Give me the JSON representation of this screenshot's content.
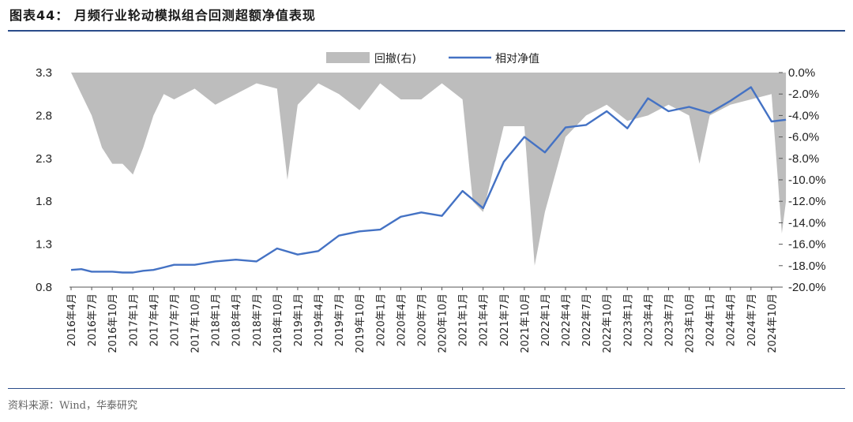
{
  "header": {
    "title": "图表44：  月频行业轮动模拟组合回测超额净值表现"
  },
  "footer": {
    "source": "资料来源：Wind，华泰研究"
  },
  "chart_data": {
    "type": "area+line",
    "title": "",
    "legend": [
      "回撤(右)",
      "相对净值"
    ],
    "legend_position": "top",
    "colors": {
      "drawdown": "#bdbdbd",
      "nav": "#4472c4"
    },
    "left_axis": {
      "min": 0.8,
      "max": 3.3,
      "ticks": [
        "0.8",
        "1.3",
        "1.8",
        "2.3",
        "2.8",
        "3.3"
      ]
    },
    "right_axis": {
      "min": -20,
      "max": 0,
      "unit": "%",
      "ticks": [
        "0.0%",
        "-2.0%",
        "-4.0%",
        "-6.0%",
        "-8.0%",
        "-10.0%",
        "-12.0%",
        "-14.0%",
        "-16.0%",
        "-18.0%",
        "-20.0%"
      ]
    },
    "x_ticks": [
      "2016年4月",
      "2016年7月",
      "2016年10月",
      "2017年1月",
      "2017年4月",
      "2017年7月",
      "2017年10月",
      "2018年1月",
      "2018年4月",
      "2018年7月",
      "2018年10月",
      "2019年1月",
      "2019年4月",
      "2019年7月",
      "2019年10月",
      "2020年1月",
      "2020年4月",
      "2020年7月",
      "2020年10月",
      "2021年1月",
      "2021年4月",
      "2021年7月",
      "2021年10月",
      "2022年1月",
      "2022年4月",
      "2022年7月",
      "2022年10月",
      "2023年1月",
      "2023年4月",
      "2023年7月",
      "2023年10月",
      "2024年1月",
      "2024年4月",
      "2024年7月",
      "2024年10月"
    ],
    "series": [
      {
        "name": "相对净值",
        "axis": "left",
        "x": [
          0,
          0.5,
          1,
          1.5,
          2,
          2.5,
          3,
          3.5,
          4,
          4.5,
          5,
          6,
          7,
          8,
          9,
          10,
          11,
          12,
          13,
          14,
          15,
          16,
          17,
          18,
          19,
          20,
          21,
          22,
          23,
          24,
          25,
          26,
          27,
          28,
          29,
          30,
          31,
          32,
          33,
          34,
          34.7
        ],
        "values": [
          1.0,
          1.01,
          0.98,
          0.98,
          0.98,
          0.97,
          0.97,
          0.99,
          1.0,
          1.03,
          1.06,
          1.06,
          1.1,
          1.12,
          1.1,
          1.25,
          1.18,
          1.22,
          1.4,
          1.45,
          1.47,
          1.62,
          1.67,
          1.63,
          1.92,
          1.72,
          2.26,
          2.55,
          2.37,
          2.66,
          2.69,
          2.85,
          2.65,
          3.0,
          2.85,
          2.9,
          2.83,
          2.97,
          3.13,
          2.73,
          2.75
        ]
      },
      {
        "name": "回撤(右)",
        "axis": "right",
        "unit": "%",
        "x": [
          0,
          0.5,
          1,
          1.5,
          2,
          2.5,
          3,
          3.5,
          4,
          4.5,
          5,
          6,
          7,
          8,
          9,
          10,
          10.5,
          11,
          12,
          13,
          14,
          15,
          16,
          17,
          18,
          19,
          19.5,
          20,
          21,
          22,
          22.5,
          23,
          24,
          25,
          26,
          27,
          28,
          29,
          30,
          30.5,
          31,
          32,
          33,
          34,
          34.5,
          34.7
        ],
        "values": [
          0,
          -2.0,
          -4.0,
          -7.0,
          -8.5,
          -8.5,
          -9.5,
          -7.0,
          -4.0,
          -2.0,
          -2.5,
          -1.5,
          -3.0,
          -2.0,
          -1.0,
          -1.5,
          -10.0,
          -3.0,
          -1.0,
          -2.0,
          -3.5,
          -1.0,
          -2.5,
          -2.5,
          -1.0,
          -2.5,
          -12.0,
          -13.0,
          -5.0,
          -5.0,
          -18.0,
          -13.0,
          -6.0,
          -4.0,
          -3.0,
          -4.5,
          -4.0,
          -3.0,
          -4.0,
          -8.5,
          -4.0,
          -3.0,
          -2.5,
          -2.0,
          -15.0,
          -12.0
        ]
      }
    ]
  }
}
